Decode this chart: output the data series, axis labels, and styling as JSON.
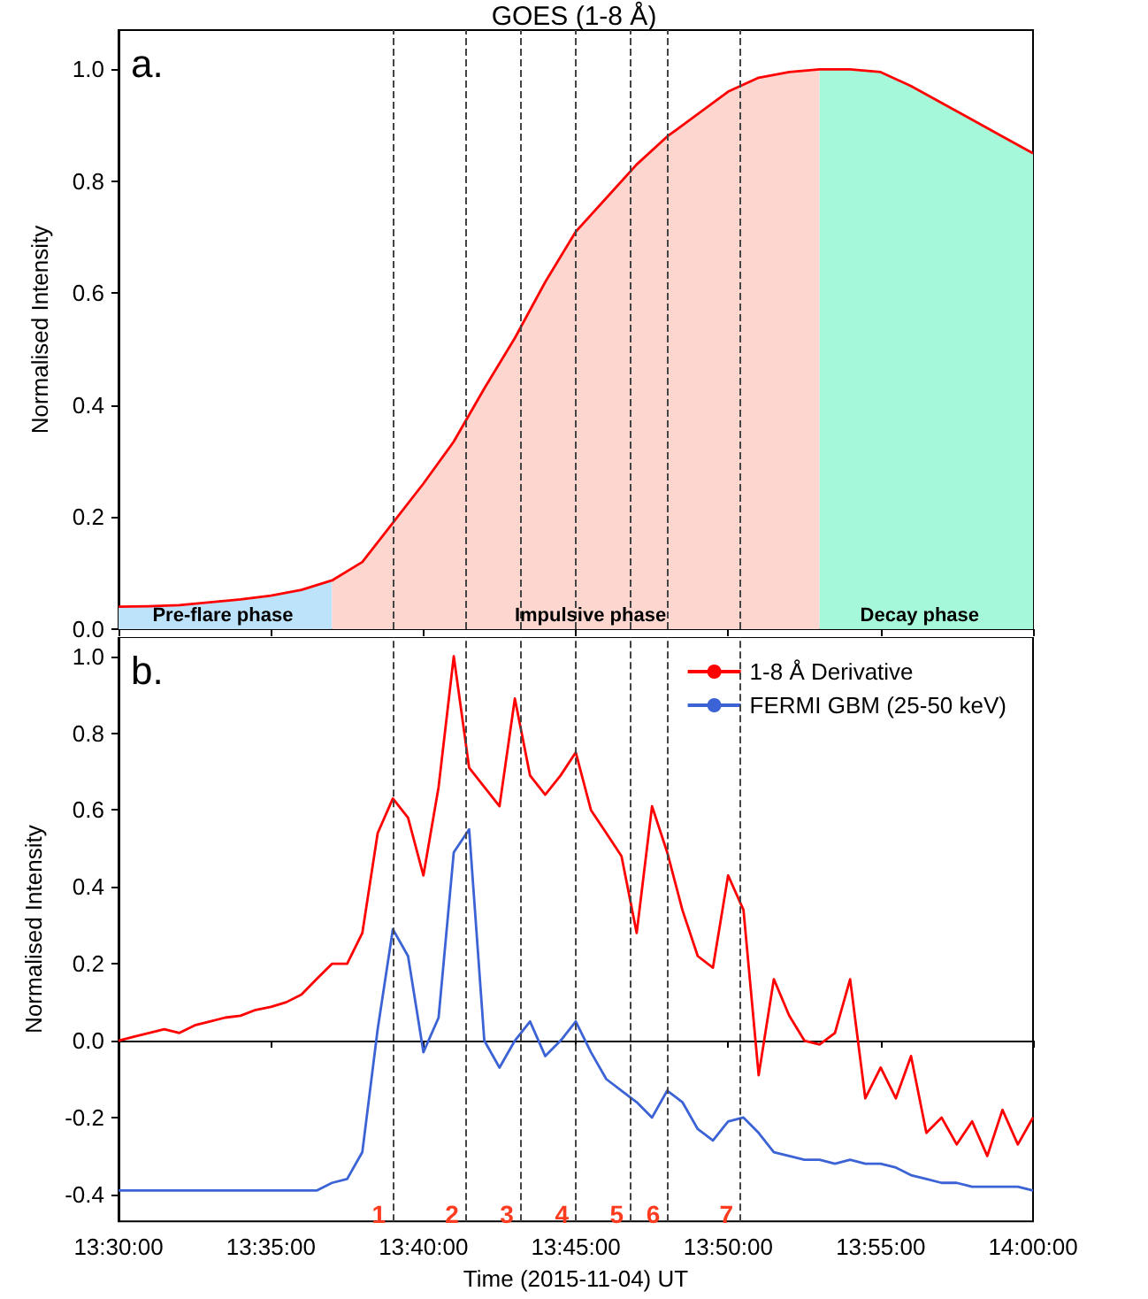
{
  "chart_data": [
    {
      "type": "line",
      "title": "GOES (1-8 Å)",
      "ylabel": "Normalised Intensity",
      "annotations": [
        "a.",
        {
          "text": "Pre-flare phase",
          "x": 13.557,
          "y": 0
        },
        {
          "text": "Impulsive phase",
          "x": 13.758,
          "y": 0
        },
        {
          "text": "Decay phase",
          "x": 13.938,
          "y": 0
        }
      ],
      "series": [
        {
          "type": "area",
          "color": "#bde3fb",
          "x": [
            13.5,
            13.5167,
            13.5333,
            13.55,
            13.5667,
            13.5833,
            13.6,
            13.6167
          ],
          "values": [
            0.04,
            0.041,
            0.043,
            0.048,
            0.053,
            0.06,
            0.07,
            0.087
          ]
        },
        {
          "type": "area",
          "color": "#fdd6d0",
          "x": [
            13.6167,
            13.6333,
            13.65,
            13.6667,
            13.6833,
            13.7,
            13.7167,
            13.7333,
            13.75,
            13.7667,
            13.7833,
            13.8,
            13.8167,
            13.8333,
            13.85,
            13.8667,
            13.8833
          ],
          "values": [
            0.087,
            0.12,
            0.19,
            0.26,
            0.335,
            0.43,
            0.52,
            0.62,
            0.71,
            0.77,
            0.83,
            0.88,
            0.92,
            0.96,
            0.985,
            0.995,
            1.0
          ]
        },
        {
          "type": "area",
          "color": "#a5f9da",
          "x": [
            13.8833,
            13.9,
            13.9167,
            13.9333,
            13.95,
            13.9667,
            13.9833,
            14.0
          ],
          "values": [
            1.0,
            1.0,
            0.995,
            0.97,
            0.94,
            0.91,
            0.88,
            0.85
          ]
        },
        {
          "color": "#ff0000",
          "x": [
            13.5,
            13.5167,
            13.5333,
            13.55,
            13.5667,
            13.5833,
            13.6,
            13.6167,
            13.6333,
            13.65,
            13.6667,
            13.6833,
            13.7,
            13.7167,
            13.7333,
            13.75,
            13.7667,
            13.7833,
            13.8,
            13.8167,
            13.8333,
            13.85,
            13.8667,
            13.8833,
            13.9,
            13.9167,
            13.9333,
            13.95,
            13.9667,
            13.9833,
            14.0
          ],
          "values": [
            0.04,
            0.041,
            0.043,
            0.048,
            0.053,
            0.06,
            0.07,
            0.087,
            0.12,
            0.19,
            0.26,
            0.335,
            0.43,
            0.52,
            0.62,
            0.71,
            0.77,
            0.83,
            0.88,
            0.92,
            0.96,
            0.985,
            0.995,
            1.0,
            1.0,
            0.995,
            0.97,
            0.94,
            0.91,
            0.88,
            0.85
          ]
        }
      ],
      "xlim": [
        13.5,
        14.0
      ],
      "xticks": [
        {
          "value": 13.5,
          "label": null
        },
        {
          "value": 13.5833,
          "label": null
        },
        {
          "value": 13.6667,
          "label": null
        },
        {
          "value": 13.75,
          "label": null
        },
        {
          "value": 13.8333,
          "label": null
        },
        {
          "value": 13.9167,
          "label": null
        },
        {
          "value": 14.0,
          "label": null
        }
      ],
      "ylim": [
        0,
        1.07
      ],
      "yticks": [
        {
          "value": 0,
          "label": "0.0"
        },
        {
          "value": 0.2,
          "label": "0.2"
        },
        {
          "value": 0.4,
          "label": "0.4"
        },
        {
          "value": 0.6,
          "label": "0.6"
        },
        {
          "value": 0.8,
          "label": "0.8"
        },
        {
          "value": 1,
          "label": "1.0"
        }
      ],
      "tick_labels": "y",
      "grid": false,
      "legend": false,
      "ref_lines": [
        {
          "axis": "x",
          "value": 13.65,
          "color": "#444444",
          "line_style": "dashed"
        },
        {
          "axis": "x",
          "value": 13.69,
          "color": "#444444",
          "line_style": "dashed"
        },
        {
          "axis": "x",
          "value": 13.72,
          "color": "#444444",
          "line_style": "dashed"
        },
        {
          "axis": "x",
          "value": 13.75,
          "color": "#444444",
          "line_style": "dashed"
        },
        {
          "axis": "x",
          "value": 13.78,
          "color": "#444444",
          "line_style": "dashed"
        },
        {
          "axis": "x",
          "value": 13.8,
          "color": "#444444",
          "line_style": "dashed"
        },
        {
          "axis": "x",
          "value": 13.84,
          "color": "#444444",
          "line_style": "dashed"
        }
      ]
    },
    {
      "type": "line",
      "xlabel": "Time (2015-11-04) UT",
      "ylabel": "Normalised Intensity",
      "annotations": [
        "b.",
        {
          "text": "1",
          "x": 13.65,
          "y": -0.45
        },
        {
          "text": "2",
          "x": 13.69,
          "y": -0.45
        },
        {
          "text": "3",
          "x": 13.72,
          "y": -0.45
        },
        {
          "text": "4",
          "x": 13.75,
          "y": -0.45
        },
        {
          "text": "5",
          "x": 13.78,
          "y": -0.45
        },
        {
          "text": "6",
          "x": 13.8,
          "y": -0.45
        },
        {
          "text": "7",
          "x": 13.84,
          "y": -0.45
        }
      ],
      "x": [
        13.5,
        13.5083,
        13.5167,
        13.525,
        13.5333,
        13.5417,
        13.55,
        13.5583,
        13.5667,
        13.575,
        13.5833,
        13.5917,
        13.6,
        13.6083,
        13.6167,
        13.625,
        13.6333,
        13.6417,
        13.65,
        13.6583,
        13.6667,
        13.675,
        13.6833,
        13.6917,
        13.7,
        13.7083,
        13.7167,
        13.725,
        13.7333,
        13.7417,
        13.75,
        13.7583,
        13.7667,
        13.775,
        13.7833,
        13.7917,
        13.8,
        13.8083,
        13.8167,
        13.825,
        13.8333,
        13.8417,
        13.85,
        13.8583,
        13.8667,
        13.875,
        13.8833,
        13.8917,
        13.9,
        13.9083,
        13.9167,
        13.925,
        13.9333,
        13.9417,
        13.95,
        13.9583,
        13.9667,
        13.975,
        13.9833,
        13.9917,
        14.0
      ],
      "series": [
        {
          "name": "1-8 Å Derivative",
          "color": "#ff0000",
          "values": [
            0.0,
            0.01,
            0.02,
            0.03,
            0.02,
            0.04,
            0.05,
            0.06,
            0.065,
            0.08,
            0.088,
            0.1,
            0.12,
            0.16,
            0.2,
            0.2,
            0.28,
            0.54,
            0.63,
            0.58,
            0.43,
            0.66,
            1.0,
            0.71,
            0.66,
            0.61,
            0.89,
            0.69,
            0.64,
            0.69,
            0.75,
            0.6,
            0.54,
            0.48,
            0.28,
            0.61,
            0.49,
            0.34,
            0.22,
            0.19,
            0.43,
            0.34,
            -0.09,
            0.16,
            0.065,
            0.0,
            -0.01,
            0.02,
            0.16,
            -0.15,
            -0.07,
            -0.15,
            -0.04,
            -0.24,
            -0.2,
            -0.27,
            -0.21,
            -0.3,
            -0.18,
            -0.27,
            -0.2
          ]
        },
        {
          "name": "FERMI GBM (25-50 keV)",
          "color": "#3b63d6",
          "values": [
            -0.39,
            -0.39,
            -0.39,
            -0.39,
            -0.39,
            -0.39,
            -0.39,
            -0.39,
            -0.39,
            -0.39,
            -0.39,
            -0.39,
            -0.39,
            -0.39,
            -0.37,
            -0.36,
            -0.29,
            0.03,
            0.29,
            0.22,
            -0.03,
            0.06,
            0.49,
            0.55,
            0.0,
            -0.07,
            0.0,
            0.05,
            -0.04,
            0.0,
            0.05,
            -0.03,
            -0.1,
            -0.13,
            -0.16,
            -0.2,
            -0.13,
            -0.16,
            -0.23,
            -0.26,
            -0.21,
            -0.2,
            -0.24,
            -0.29,
            -0.3,
            -0.31,
            -0.31,
            -0.32,
            -0.31,
            -0.32,
            -0.32,
            -0.33,
            -0.35,
            -0.36,
            -0.37,
            -0.37,
            -0.38,
            -0.38,
            -0.38,
            -0.38,
            -0.39
          ]
        }
      ],
      "xlim": [
        13.5,
        14.0
      ],
      "xticks": [
        {
          "value": 13.5,
          "label": "13:30:00"
        },
        {
          "value": 13.5833,
          "label": "13:35:00"
        },
        {
          "value": 13.6667,
          "label": "13:40:00"
        },
        {
          "value": 13.75,
          "label": "13:45:00"
        },
        {
          "value": 13.8333,
          "label": "13:50:00"
        },
        {
          "value": 13.9167,
          "label": "13:55:00"
        },
        {
          "value": 14.0,
          "label": "14:00:00"
        }
      ],
      "ylim": [
        -0.47,
        1.05
      ],
      "yticks": [
        {
          "value": -0.4,
          "label": "-0.4"
        },
        {
          "value": -0.2,
          "label": "-0.2"
        },
        {
          "value": 0,
          "label": "0.0"
        },
        {
          "value": 0.2,
          "label": "0.2"
        },
        {
          "value": 0.4,
          "label": "0.4"
        },
        {
          "value": 0.6,
          "label": "0.6"
        },
        {
          "value": 0.8,
          "label": "0.8"
        },
        {
          "value": 1,
          "label": "1.0"
        }
      ],
      "grid": false,
      "legend": "top right",
      "ref_lines": [
        {
          "axis": "x",
          "value": 13.65,
          "color": "#444444",
          "line_style": "dashed"
        },
        {
          "axis": "x",
          "value": 13.69,
          "color": "#444444",
          "line_style": "dashed"
        },
        {
          "axis": "x",
          "value": 13.72,
          "color": "#444444",
          "line_style": "dashed"
        },
        {
          "axis": "x",
          "value": 13.75,
          "color": "#444444",
          "line_style": "dashed"
        },
        {
          "axis": "x",
          "value": 13.78,
          "color": "#444444",
          "line_style": "dashed"
        },
        {
          "axis": "x",
          "value": 13.8,
          "color": "#444444",
          "line_style": "dashed"
        },
        {
          "axis": "x",
          "value": 13.84,
          "color": "#444444",
          "line_style": "dashed"
        }
      ]
    }
  ]
}
